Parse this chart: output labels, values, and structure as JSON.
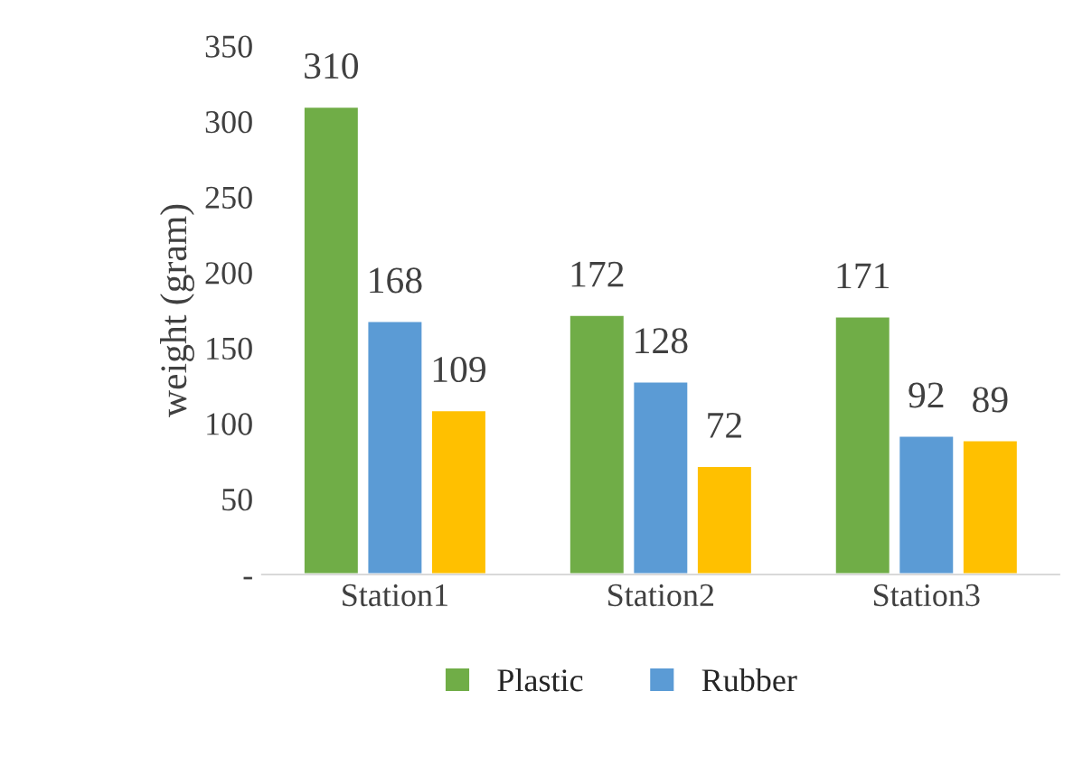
{
  "chart_data": {
    "type": "bar",
    "ylabel": "weight (gram)",
    "categories": [
      "Station1",
      "Station2",
      "Station3"
    ],
    "series": [
      {
        "name": "Plastic",
        "color": "#70ad47",
        "values": [
          310,
          172,
          171
        ]
      },
      {
        "name": "Rubber",
        "color": "#5b9bd5",
        "values": [
          168,
          128,
          92
        ]
      },
      {
        "color": "#ffc000",
        "values": [
          109,
          72,
          89
        ]
      }
    ],
    "ylim": [
      0,
      350
    ],
    "yticks": [
      {
        "value": 0,
        "label": "-"
      },
      50,
      100,
      150,
      200,
      250,
      300,
      350
    ],
    "data_labels": true,
    "grid": false,
    "legend": "bottom"
  }
}
